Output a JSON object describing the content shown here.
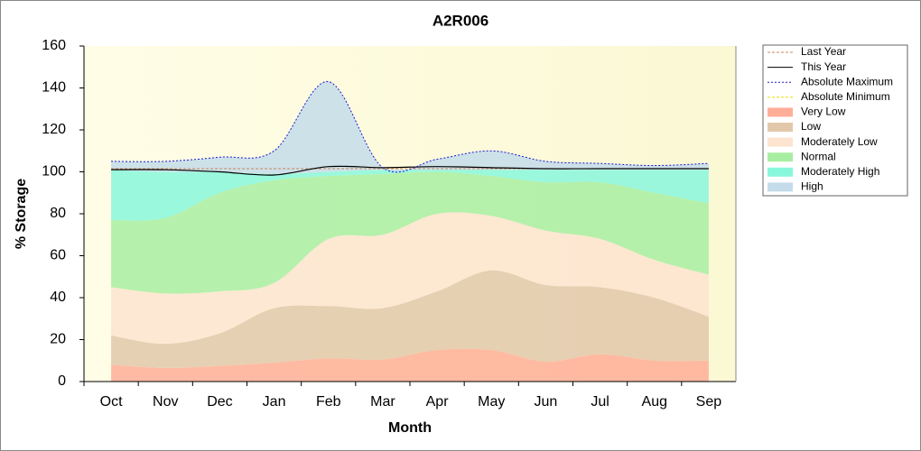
{
  "chart_data": {
    "type": "stacked_area",
    "title": "A2R006",
    "x_label": "Month",
    "y_label": "% Storage",
    "categories": [
      "Oct",
      "Nov",
      "Dec",
      "Jan",
      "Feb",
      "Mar",
      "Apr",
      "May",
      "Jun",
      "Jul",
      "Aug",
      "Sep"
    ],
    "ylim": [
      0,
      160
    ],
    "yticks": [
      0,
      20,
      40,
      60,
      80,
      100,
      120,
      140,
      160
    ],
    "legend": "right",
    "series": [
      {
        "name": "Last Year",
        "kind": "line",
        "style": "dashed",
        "color": "#c8845a",
        "values": [
          101.5,
          101.5,
          101.5,
          101.5,
          101.5,
          101.5,
          101.5,
          101.5,
          101.5,
          101.5,
          101.5,
          101.5
        ]
      },
      {
        "name": "This Year",
        "kind": "line",
        "style": "solid",
        "color": "#000000",
        "values": [
          101,
          101,
          100,
          98.5,
          102.5,
          102,
          102.5,
          102,
          101.5,
          101.5,
          101.5,
          101.5
        ]
      },
      {
        "name": "Absolute Maximum",
        "kind": "line",
        "style": "dotted",
        "color": "#1a1ad0",
        "values": [
          105,
          105,
          107,
          110,
          143,
          102,
          106,
          110,
          105,
          104,
          103,
          104
        ]
      },
      {
        "name": "Absolute Minimum",
        "kind": "line",
        "style": "dashed",
        "color": "#e8e000",
        "values": [
          null,
          null,
          null,
          null,
          null,
          null,
          null,
          null,
          null,
          null,
          null,
          null
        ]
      },
      {
        "name": "Very Low",
        "kind": "area",
        "color": "#ffae98",
        "values": [
          8,
          6.5,
          7.5,
          9,
          11,
          10.5,
          15,
          15,
          9.5,
          13,
          10,
          10
        ]
      },
      {
        "name": "Low",
        "kind": "area",
        "color": "#e2c8aa",
        "values": [
          14,
          11.5,
          15.5,
          26,
          25,
          24.5,
          28,
          38,
          36.5,
          32,
          30,
          21
        ]
      },
      {
        "name": "Moderately Low",
        "kind": "area",
        "color": "#fde4d0",
        "values": [
          23,
          24,
          20,
          12,
          32,
          35,
          37,
          26,
          26,
          23,
          18,
          20
        ]
      },
      {
        "name": "Normal",
        "kind": "area",
        "color": "#a8eea2",
        "values": [
          32,
          36,
          47,
          49,
          30,
          29,
          20,
          19,
          23,
          27,
          32,
          34
        ]
      },
      {
        "name": "Moderately High",
        "kind": "area",
        "color": "#88f7dc",
        "values": [
          24,
          22,
          10,
          3,
          2,
          2,
          1,
          3,
          6,
          6,
          11,
          16
        ]
      },
      {
        "name": "High",
        "kind": "area",
        "color": "#c4dcea",
        "values": [
          4,
          5,
          7,
          11,
          43,
          1,
          5,
          9,
          4,
          3,
          2,
          3
        ]
      }
    ]
  }
}
